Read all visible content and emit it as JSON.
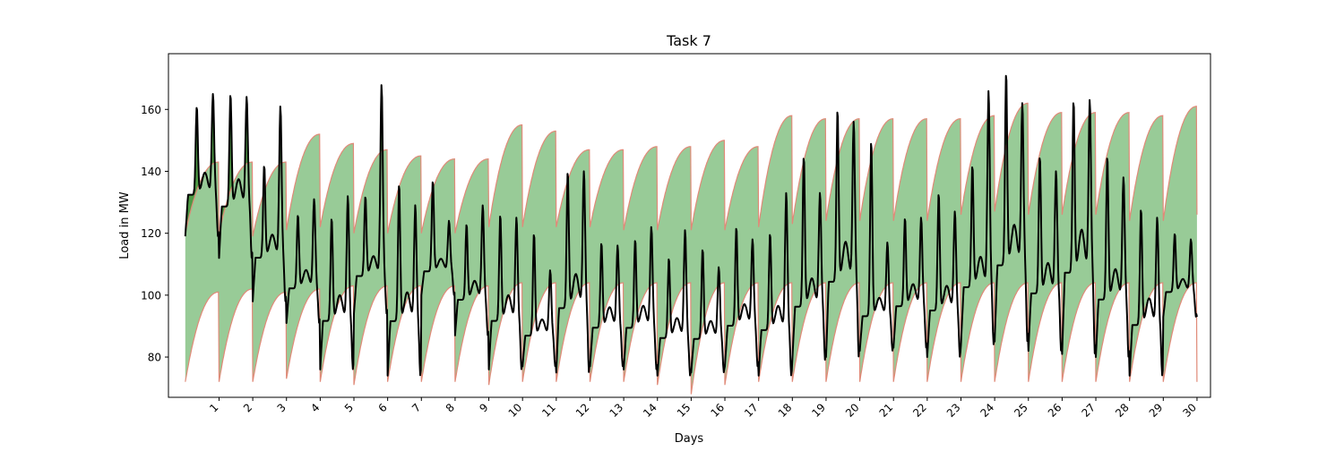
{
  "chart_data": {
    "type": "area",
    "title": "Task 7",
    "xlabel": "Days",
    "ylabel": "Load in MW",
    "xlim": [
      -0.5,
      30.4
    ],
    "ylim": [
      67,
      178
    ],
    "x_ticks": [
      1,
      2,
      3,
      4,
      5,
      6,
      7,
      8,
      9,
      10,
      11,
      12,
      13,
      14,
      15,
      16,
      17,
      18,
      19,
      20,
      21,
      22,
      23,
      24,
      25,
      26,
      27,
      28,
      29,
      30
    ],
    "x_tick_labels": [
      "1",
      "2",
      "3",
      "4",
      "5",
      "6",
      "7",
      "8",
      "9",
      "10",
      "11",
      "12",
      "13",
      "14",
      "15",
      "16",
      "17",
      "18",
      "19",
      "20",
      "21",
      "22",
      "23",
      "24",
      "25",
      "26",
      "27",
      "28",
      "29",
      "30"
    ],
    "y_ticks": [
      80,
      100,
      120,
      140,
      160
    ],
    "y_tick_labels": [
      "80",
      "100",
      "120",
      "140",
      "160"
    ],
    "grid": false,
    "colors": {
      "band_fill": "#98cb97",
      "band_edge": "#e08a78",
      "actual_line": "#000000",
      "exceed_fill": "#4e9a45"
    },
    "band": {
      "lower": {
        "min": [
          72,
          72,
          72,
          73,
          72,
          71,
          72,
          72,
          72,
          71,
          72,
          72,
          72,
          72,
          71,
          68,
          71,
          72,
          72,
          72,
          72,
          72,
          72,
          72,
          72,
          72,
          72,
          72,
          72,
          72
        ],
        "max": [
          101,
          102,
          101,
          102,
          103,
          103,
          103,
          103,
          103,
          104,
          104,
          104,
          104,
          104,
          104,
          104,
          104,
          104,
          104,
          104,
          104,
          104,
          104,
          104,
          104,
          104,
          104,
          104,
          104,
          104
        ]
      },
      "upper": {
        "min": [
          120,
          120,
          119,
          121,
          122,
          120,
          120,
          120,
          120,
          122,
          122,
          122,
          122,
          121,
          121,
          121,
          121,
          122,
          123,
          124,
          124,
          124,
          124,
          126,
          127,
          126,
          126,
          126,
          124,
          124
        ],
        "max": [
          143,
          143,
          143,
          152,
          149,
          147,
          145,
          144,
          144,
          155,
          153,
          147,
          147,
          148,
          148,
          150,
          148,
          158,
          157,
          157,
          157,
          157,
          157,
          158,
          162,
          159,
          159,
          159,
          158,
          161
        ]
      }
    },
    "series": [
      {
        "daily_peak_1": [
          161,
          165,
          142,
          126,
          125,
          132,
          136,
          137,
          123,
          126,
          120,
          140,
          117,
          118,
          112,
          115,
          122,
          120,
          145,
          160,
          150,
          125,
          133,
          142,
          172,
          145,
          163,
          145,
          128,
          120
        ],
        "daily_peak_2": [
          165,
          164,
          161,
          131,
          132,
          168,
          129,
          124,
          129,
          125,
          108,
          140,
          116,
          122,
          121,
          109,
          118,
          133,
          133,
          156,
          117,
          125,
          127,
          166,
          162,
          140,
          163,
          138,
          125,
          118
        ],
        "daily_min": [
          119,
          112,
          98,
          91,
          76,
          94,
          74,
          100,
          87,
          76,
          77,
          75,
          77,
          76,
          74,
          75,
          77,
          74,
          79,
          80,
          82,
          83,
          80,
          84,
          85,
          82,
          81,
          80,
          74,
          93
        ]
      }
    ]
  }
}
